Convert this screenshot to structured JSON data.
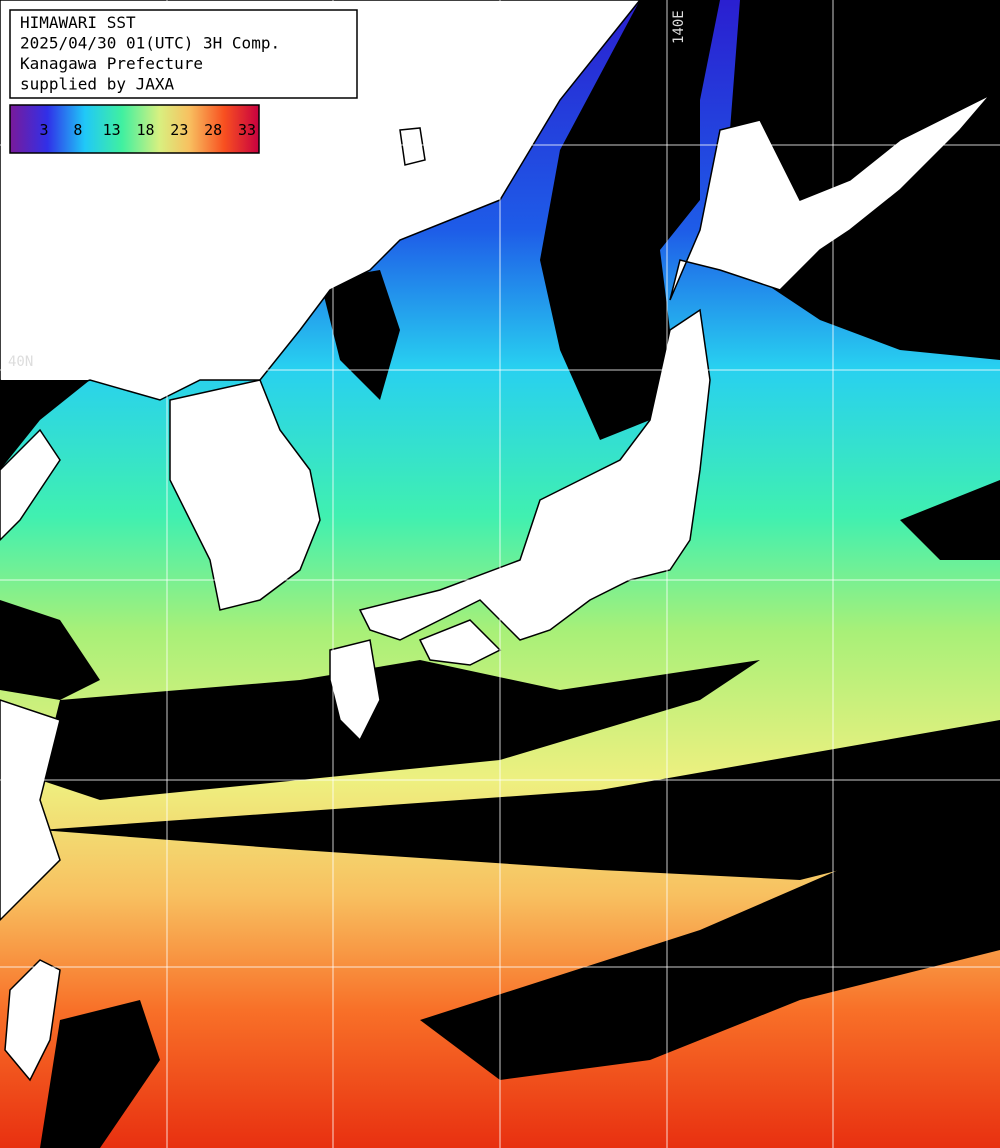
{
  "header": {
    "lines": [
      "HIMAWARI SST",
      "2025/04/30 01(UTC) 3H Comp.",
      "Kanagawa Prefecture",
      "supplied by JAXA"
    ]
  },
  "colorbar": {
    "ticks": [
      "3",
      "8",
      "13",
      "18",
      "23",
      "28",
      "33"
    ]
  },
  "grid_labels": {
    "latitude": "40N",
    "longitude": "140E"
  }
}
